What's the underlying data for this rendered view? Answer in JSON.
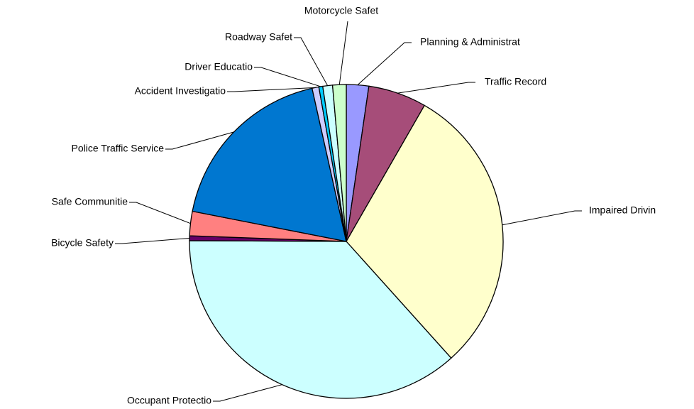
{
  "chart_data": {
    "type": "pie",
    "categories": [
      "Planning & Administrat",
      "Traffic Record",
      "Impaired Drivin",
      "Occupant  Protectio",
      "Bicycle Safety",
      "Safe Communitie",
      "Police Traffic Service",
      "Accident Investigatio",
      "Driver Educatio",
      "Roadway Safet",
      "Motorcycle Safet"
    ],
    "values": [
      2.3,
      6,
      30,
      36.7,
      0.5,
      2.5,
      18.4,
      0.7,
      0.4,
      1,
      1.4
    ],
    "colors": [
      "#9999ff",
      "#a64d79",
      "#ffffcc",
      "#ccffff",
      "#660066",
      "#ff8080",
      "#0077d0",
      "#ccccff",
      "#00ccff",
      "#ccffff",
      "#ccffcc"
    ]
  }
}
